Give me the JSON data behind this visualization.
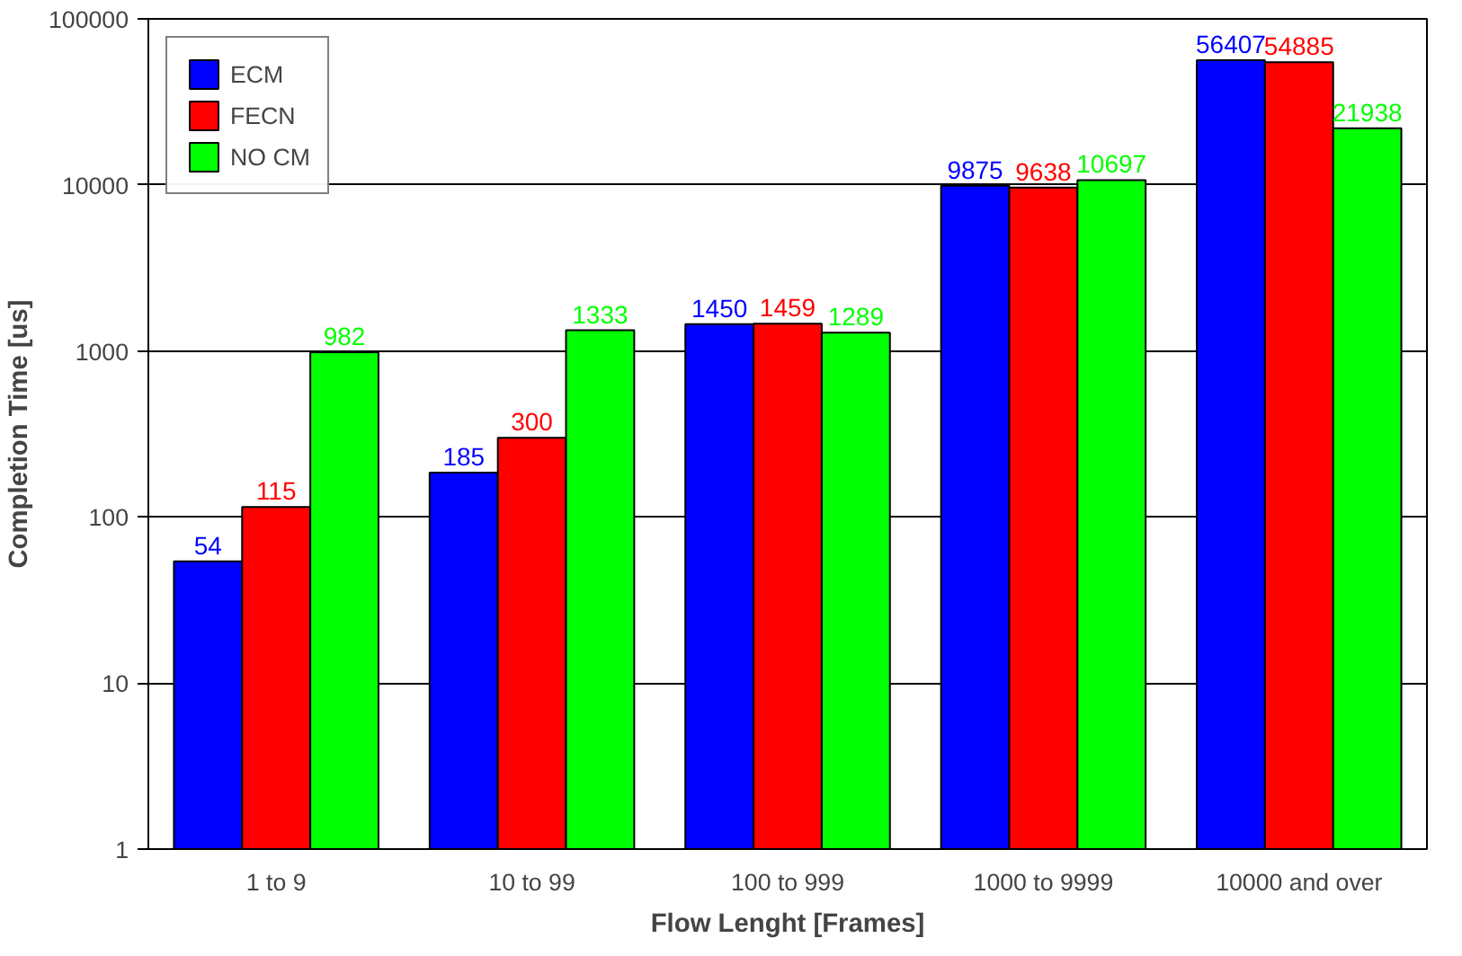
{
  "chart_data": {
    "type": "bar",
    "xlabel": "Flow Lenght [Frames]",
    "ylabel": "Completion Time [us]",
    "categories": [
      "1 to 9",
      "10 to 99",
      "100 to 999",
      "1000 to 9999",
      "10000 and over"
    ],
    "series": [
      {
        "name": "ECM",
        "color": "#0000ff",
        "values": [
          54,
          185,
          1450,
          9875,
          56407
        ]
      },
      {
        "name": "FECN",
        "color": "#ff0000",
        "values": [
          115,
          300,
          1459,
          9638,
          54885
        ]
      },
      {
        "name": "NO CM",
        "color": "#00ff00",
        "values": [
          982,
          1333,
          1289,
          10697,
          21938
        ]
      }
    ],
    "log": true,
    "ylim": [
      1,
      100000
    ],
    "yticks": [
      1,
      10,
      100,
      1000,
      10000,
      100000
    ],
    "grid": "y",
    "legend": "top left",
    "data_labels": true
  }
}
